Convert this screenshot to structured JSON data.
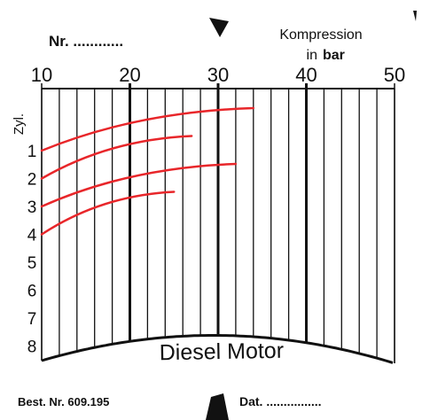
{
  "chart_data": {
    "type": "curve",
    "title": "Kompression",
    "unit_prefix": "in",
    "unit": "bar",
    "number_label": "Nr. ............",
    "row_axis_label": "Zyl.",
    "footer_label": "Diesel Motor",
    "order_number": "Best. Nr. 609.195",
    "date_label": "Dat. ................",
    "categories": [
      "1",
      "2",
      "3",
      "4",
      "5",
      "6",
      "7",
      "8"
    ],
    "values": [
      34,
      27,
      32,
      25,
      null,
      null,
      null,
      null
    ],
    "color": "#e8262a",
    "xlim": [
      10,
      50
    ],
    "xticks": [
      10,
      20,
      30,
      40,
      50
    ],
    "grid_step": 2
  }
}
